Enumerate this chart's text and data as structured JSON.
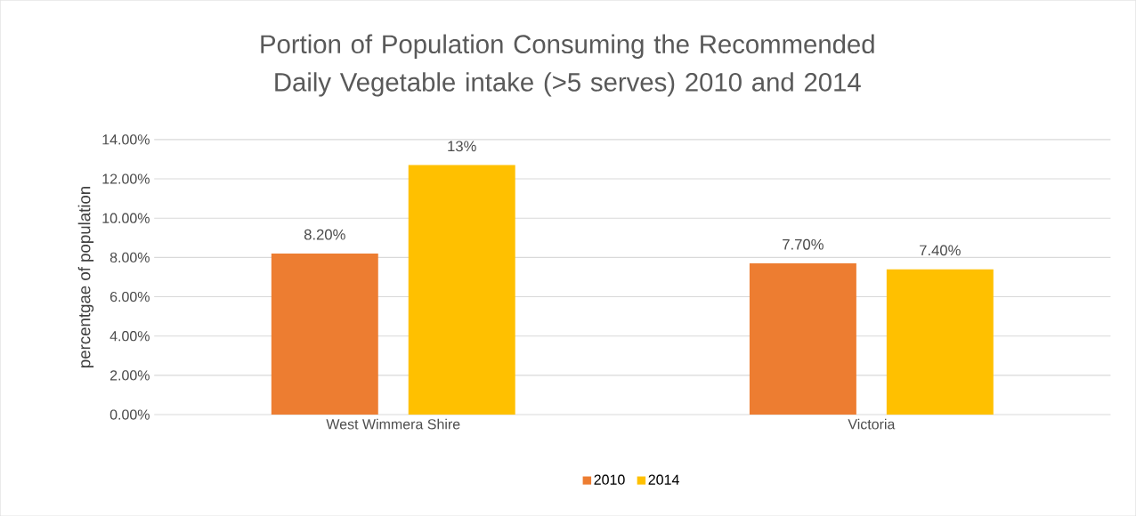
{
  "chart_data": {
    "type": "bar",
    "title": "Portion of Population Consuming the Recommended Daily Vegetable intake (>5 serves) 2010 and 2014",
    "ylabel": "percentgae of population",
    "categories": [
      "West Wimmera Shire",
      "Victoria"
    ],
    "series": [
      {
        "name": "2010",
        "color": "#ed7d31",
        "values": [
          8.2,
          7.7
        ],
        "value_labels": [
          "8.20%",
          "7.70%"
        ]
      },
      {
        "name": "2014",
        "color": "#ffc000",
        "values": [
          12.7,
          7.4
        ],
        "value_labels": [
          "13%",
          "7.40%"
        ]
      }
    ],
    "ylim": [
      0,
      14
    ],
    "yticks": [
      {
        "value": 0,
        "label": "0.00%"
      },
      {
        "value": 2,
        "label": "2.00%"
      },
      {
        "value": 4,
        "label": "4.00%"
      },
      {
        "value": 6,
        "label": "6.00%"
      },
      {
        "value": 8,
        "label": "8.00%"
      },
      {
        "value": 10,
        "label": "10.00%"
      },
      {
        "value": 12,
        "label": "12.00%"
      },
      {
        "value": 14,
        "label": "14.00%"
      }
    ],
    "grid": "y",
    "legend": "bottom"
  }
}
